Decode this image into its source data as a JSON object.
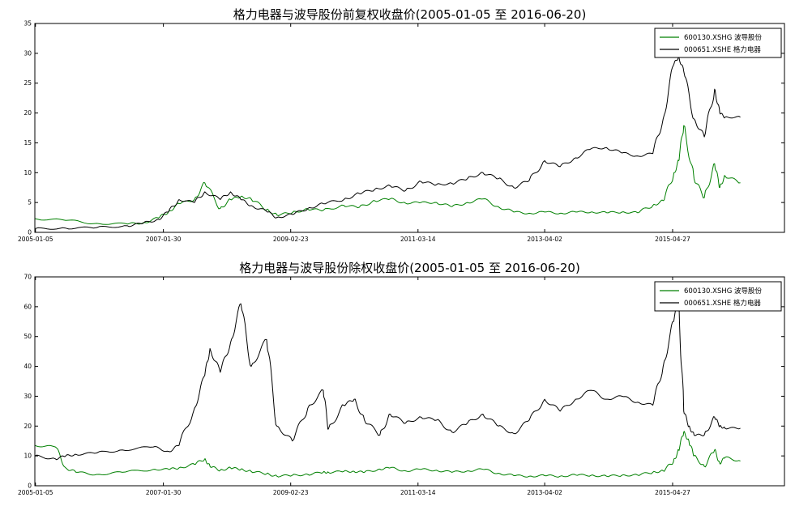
{
  "chart_data": [
    {
      "type": "line",
      "title": "格力电器与波导股份前复权收盘价(2005-01-05 至 2016-06-20)",
      "xlabel": "",
      "ylabel": "",
      "x_tick_labels": [
        "2005-01-05",
        "2007-01-30",
        "2009-02-23",
        "2011-03-14",
        "2013-04-02",
        "2015-04-27"
      ],
      "y_ticks": [
        0,
        5,
        10,
        15,
        20,
        25,
        30,
        35
      ],
      "ylim": [
        0,
        35
      ],
      "grid": false,
      "legend_position": "top-right",
      "x": [
        "2005-01",
        "2005-07",
        "2006-01",
        "2006-07",
        "2006-10",
        "2007-01",
        "2007-03",
        "2007-05",
        "2007-08",
        "2007-10",
        "2008-01",
        "2008-03",
        "2008-05",
        "2008-07",
        "2008-10",
        "2008-12",
        "2009-03",
        "2009-06",
        "2009-09",
        "2010-01",
        "2010-04",
        "2010-07",
        "2010-10",
        "2011-01",
        "2011-04",
        "2011-07",
        "2011-10",
        "2012-01",
        "2012-04",
        "2012-07",
        "2012-10",
        "2013-01",
        "2013-04",
        "2013-07",
        "2013-10",
        "2014-01",
        "2014-04",
        "2014-07",
        "2014-10",
        "2015-01",
        "2015-03",
        "2015-05",
        "2015-06",
        "2015-07",
        "2015-09",
        "2015-11",
        "2016-01",
        "2016-02",
        "2016-03",
        "2016-06"
      ],
      "series": [
        {
          "name": "600130.XSHG 波导股份",
          "color": "#008000",
          "values": [
            2.3,
            2.0,
            1.5,
            1.4,
            1.6,
            2.4,
            3.5,
            4.8,
            5.5,
            8.3,
            4.0,
            5.5,
            6.0,
            5.6,
            3.8,
            2.9,
            3.3,
            3.9,
            3.7,
            4.5,
            4.2,
            5.3,
            5.6,
            4.9,
            5.0,
            5.0,
            4.3,
            5.0,
            5.6,
            4.3,
            3.4,
            3.2,
            3.4,
            3.2,
            3.4,
            3.4,
            3.3,
            3.4,
            3.3,
            4.5,
            5.3,
            9.5,
            12.0,
            17.9,
            9.0,
            5.8,
            11.5,
            7.5,
            9.5,
            8.3
          ]
        },
        {
          "name": "000651.XSHE 格力电器",
          "color": "#000000",
          "values": [
            0.6,
            0.7,
            0.8,
            1.1,
            1.5,
            2.2,
            3.5,
            5.5,
            5.0,
            6.8,
            5.5,
            6.8,
            5.5,
            4.5,
            3.5,
            2.5,
            3.0,
            4.0,
            4.8,
            5.5,
            6.5,
            7.2,
            7.8,
            7.0,
            8.5,
            8.0,
            8.2,
            9.0,
            10.0,
            9.0,
            7.5,
            8.7,
            12.0,
            11.0,
            12.5,
            14.0,
            14.2,
            13.3,
            12.8,
            13.2,
            19.0,
            28.0,
            29.5,
            27.0,
            19.0,
            16.0,
            24.0,
            20.0,
            19.3,
            19.3
          ]
        }
      ]
    },
    {
      "type": "line",
      "title": "格力电器与波导股份除权收盘价(2005-01-05 至 2016-06-20)",
      "xlabel": "",
      "ylabel": "",
      "x_tick_labels": [
        "2005-01-05",
        "2007-01-30",
        "2009-02-23",
        "2011-03-14",
        "2013-04-02",
        "2015-04-27"
      ],
      "y_ticks": [
        0,
        10,
        20,
        30,
        40,
        50,
        60,
        70
      ],
      "ylim": [
        0,
        70
      ],
      "grid": false,
      "legend_position": "top-right",
      "x": [
        "2005-01",
        "2005-05",
        "2005-07",
        "2005-09",
        "2006-01",
        "2006-06",
        "2006-12",
        "2007-03",
        "2007-05",
        "2007-08",
        "2007-10",
        "2007-11",
        "2008-01",
        "2008-03",
        "2008-05",
        "2008-07",
        "2008-10",
        "2008-12",
        "2009-03",
        "2009-06",
        "2009-09",
        "2009-10",
        "2010-01",
        "2010-03",
        "2010-05",
        "2010-08",
        "2010-10",
        "2011-01",
        "2011-04",
        "2011-07",
        "2011-10",
        "2012-01",
        "2012-04",
        "2012-07",
        "2012-10",
        "2013-01",
        "2013-04",
        "2013-07",
        "2013-10",
        "2014-01",
        "2014-04",
        "2014-07",
        "2014-10",
        "2015-01",
        "2015-03",
        "2015-05",
        "2015-06",
        "2015-07",
        "2015-08",
        "2015-09",
        "2015-11",
        "2016-01",
        "2016-02",
        "2016-03",
        "2016-06"
      ],
      "series": [
        {
          "name": "600130.XSHG 波导股份",
          "color": "#008000",
          "values": [
            13.5,
            13.0,
            6.0,
            4.5,
            3.8,
            4.5,
            5.5,
            5.5,
            6.0,
            7.2,
            9.0,
            6.5,
            5.2,
            6.0,
            5.5,
            4.8,
            4.0,
            3.2,
            3.5,
            3.8,
            4.5,
            4.5,
            4.8,
            4.8,
            4.5,
            5.6,
            6.0,
            5.0,
            5.5,
            5.2,
            4.5,
            5.0,
            5.5,
            4.2,
            3.4,
            3.2,
            3.4,
            3.2,
            3.6,
            3.5,
            3.2,
            3.5,
            3.6,
            4.5,
            5.0,
            8.0,
            12.0,
            18.0,
            15.0,
            10.0,
            6.5,
            12.0,
            7.5,
            9.5,
            8.3
          ]
        },
        {
          "name": "000651.XSHE 格力电器",
          "color": "#000000",
          "values": [
            10.0,
            9.0,
            10.0,
            10.5,
            11.0,
            12.0,
            13.0,
            11.5,
            13.5,
            26.0,
            37.0,
            46.0,
            38.0,
            48.0,
            61.0,
            40.0,
            49.0,
            20.0,
            15.0,
            26.0,
            32.0,
            19.0,
            27.0,
            29.0,
            22.0,
            17.0,
            24.0,
            21.0,
            23.0,
            22.0,
            18.0,
            21.0,
            24.0,
            20.0,
            17.5,
            22.0,
            29.0,
            25.0,
            29.0,
            32.0,
            29.0,
            30.0,
            28.0,
            27.0,
            40.0,
            55.0,
            62.0,
            25.0,
            20.0,
            17.0,
            17.0,
            23.0,
            20.0,
            19.3,
            19.3
          ]
        }
      ]
    }
  ]
}
